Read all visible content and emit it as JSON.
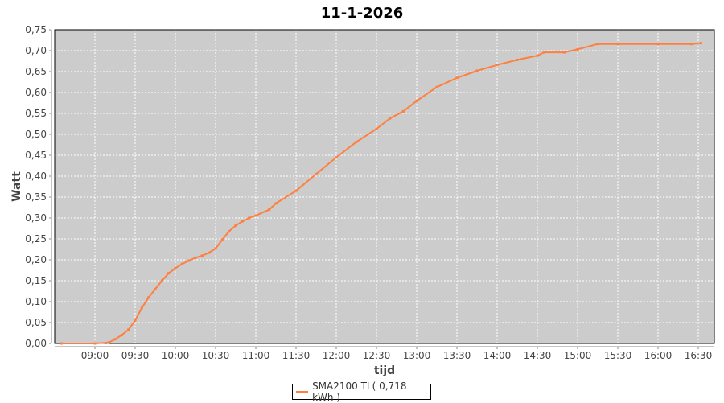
{
  "chart_data": {
    "type": "line",
    "title": "11-1-2026",
    "xlabel": "tijd",
    "ylabel": "Watt",
    "xlim": [
      "08:30",
      "16:42"
    ],
    "ylim": [
      0,
      0.75
    ],
    "grid": true,
    "legend_position": "bottom",
    "x_ticks": [
      "09:00",
      "09:30",
      "10:00",
      "10:30",
      "11:00",
      "11:30",
      "12:00",
      "12:30",
      "13:00",
      "13:30",
      "14:00",
      "14:30",
      "15:00",
      "15:30",
      "16:00",
      "16:30"
    ],
    "y_ticks": [
      "0,00",
      "0,05",
      "0,10",
      "0,15",
      "0,20",
      "0,25",
      "0,30",
      "0,35",
      "0,40",
      "0,45",
      "0,50",
      "0,55",
      "0,60",
      "0,65",
      "0,70",
      "0,75"
    ],
    "colors": {
      "plot_background": "#cccccc",
      "gridline": "#ffffff",
      "series": "#ff7f3f"
    },
    "series": [
      {
        "name": "SMA2100 TL( 0,718 kWh )",
        "x": [
          "08:35",
          "09:00",
          "09:10",
          "09:15",
          "09:20",
          "09:25",
          "09:30",
          "09:35",
          "09:40",
          "09:45",
          "09:50",
          "09:55",
          "10:00",
          "10:05",
          "10:10",
          "10:15",
          "10:20",
          "10:25",
          "10:30",
          "10:35",
          "10:40",
          "10:45",
          "10:50",
          "10:55",
          "11:00",
          "11:10",
          "11:15",
          "11:30",
          "11:45",
          "12:00",
          "12:15",
          "12:30",
          "12:40",
          "12:50",
          "13:00",
          "13:15",
          "13:30",
          "13:45",
          "14:00",
          "14:15",
          "14:30",
          "14:35",
          "14:50",
          "15:00",
          "15:15",
          "15:30",
          "16:00",
          "16:25",
          "16:32"
        ],
        "y": [
          0,
          0,
          0.002,
          0.01,
          0.02,
          0.033,
          0.055,
          0.085,
          0.11,
          0.13,
          0.15,
          0.168,
          0.18,
          0.19,
          0.198,
          0.205,
          0.21,
          0.217,
          0.227,
          0.248,
          0.268,
          0.282,
          0.292,
          0.3,
          0.306,
          0.32,
          0.335,
          0.365,
          0.405,
          0.445,
          0.482,
          0.513,
          0.538,
          0.555,
          0.58,
          0.613,
          0.635,
          0.652,
          0.666,
          0.678,
          0.688,
          0.696,
          0.696,
          0.703,
          0.716,
          0.716,
          0.716,
          0.716,
          0.718
        ]
      }
    ]
  }
}
